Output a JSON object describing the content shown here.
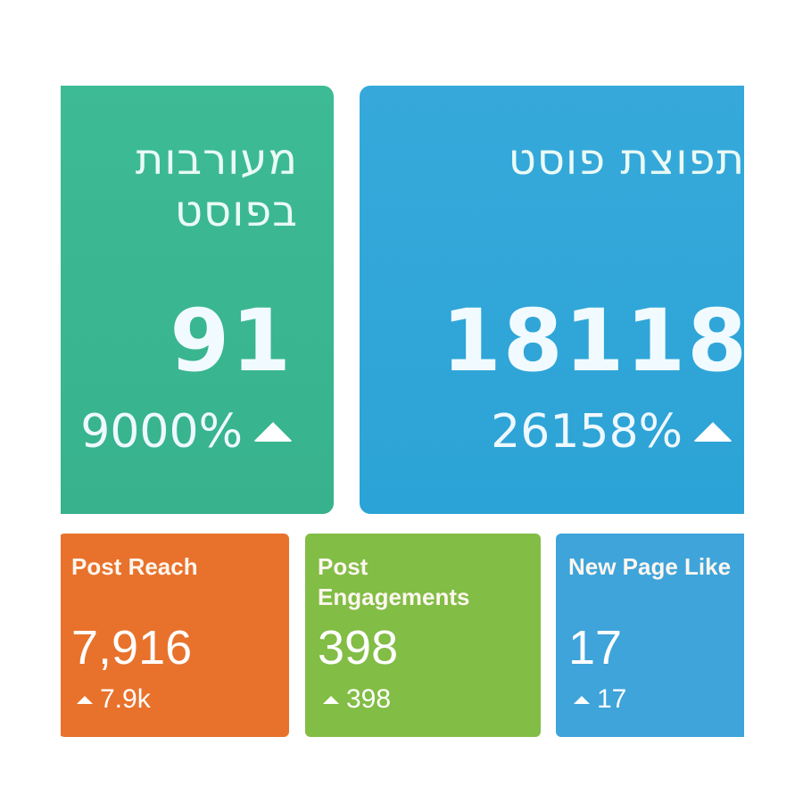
{
  "cards_large": [
    {
      "title_line1": "מעורבות",
      "title_line2": "בפוסט",
      "value": "91",
      "change": "9000%",
      "color": "#3dbb95"
    },
    {
      "title_line1": "תפוצת פוסט",
      "value": "18118",
      "change": "26158%",
      "color": "#36a9da"
    }
  ],
  "cards_small": [
    {
      "title": "Post Reach",
      "value": "7,916",
      "change": "7.9k",
      "color": "#e8722c"
    },
    {
      "title": "Post Engagements",
      "value": "398",
      "change": "398",
      "color": "#82bd45"
    },
    {
      "title": "New Page Like",
      "value": "17",
      "change": "17",
      "color": "#3ea4da"
    }
  ],
  "icons": {
    "trend": "up-triangle-icon"
  }
}
